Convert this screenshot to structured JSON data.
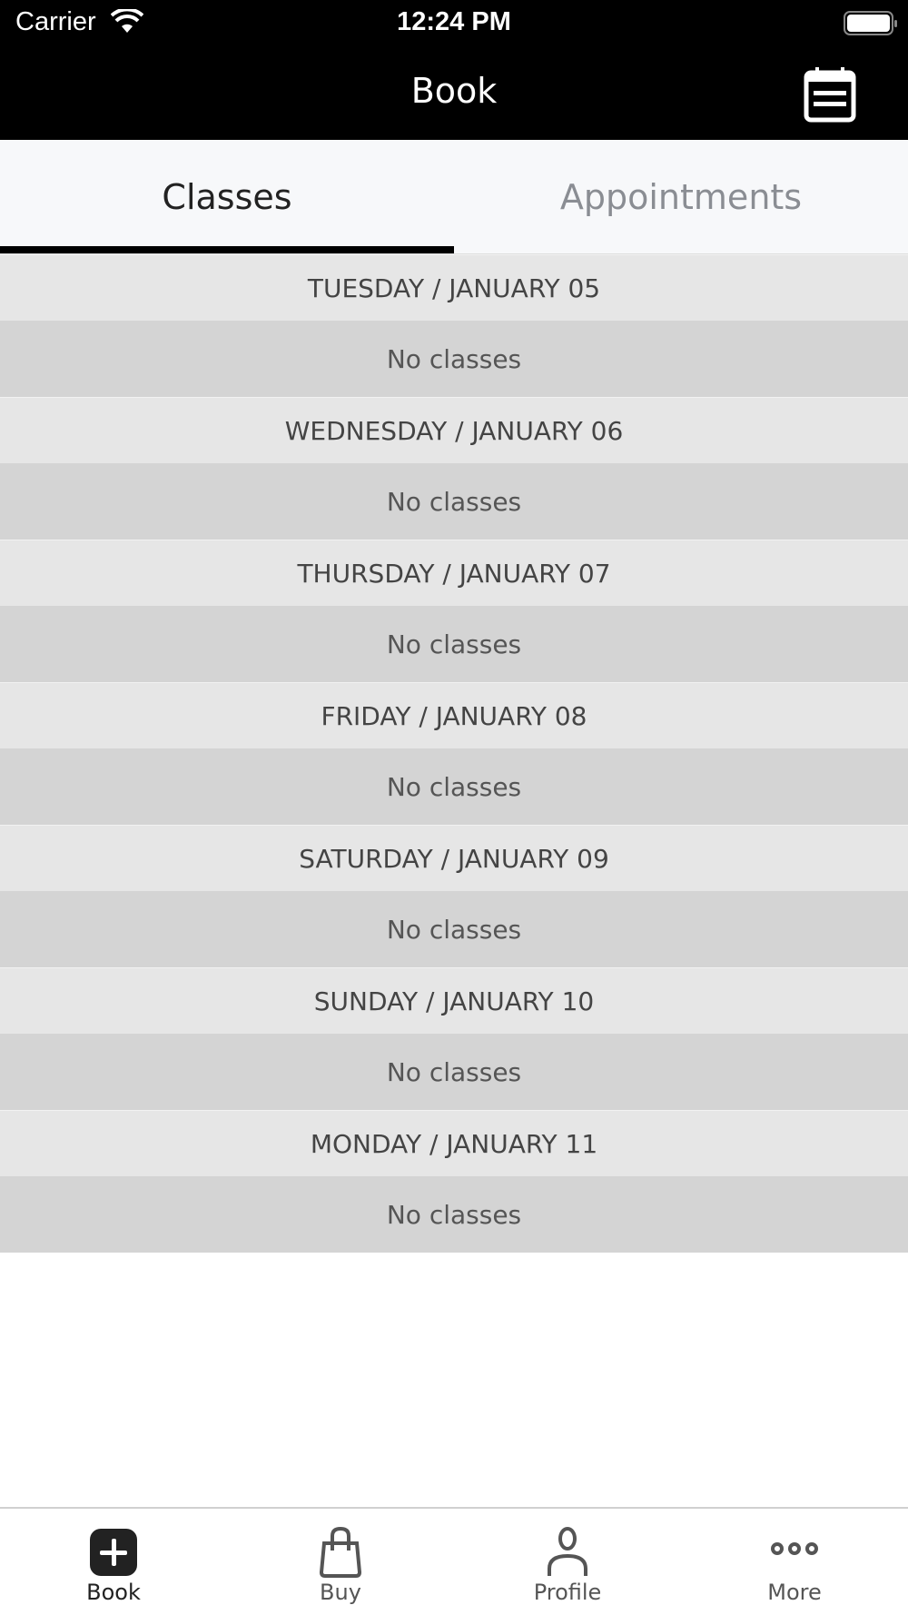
{
  "status_bar": {
    "carrier": "Carrier",
    "time": "12:24 PM"
  },
  "header": {
    "title": "Book",
    "calendar_icon": "calendar-list-icon"
  },
  "tabs": [
    {
      "label": "Classes",
      "active": true
    },
    {
      "label": "Appointments",
      "active": false
    }
  ],
  "days": [
    {
      "date": "TUESDAY / JANUARY 05",
      "message": "No classes"
    },
    {
      "date": "WEDNESDAY / JANUARY 06",
      "message": "No classes"
    },
    {
      "date": "THURSDAY / JANUARY 07",
      "message": "No classes"
    },
    {
      "date": "FRIDAY / JANUARY 08",
      "message": "No classes"
    },
    {
      "date": "SATURDAY / JANUARY 09",
      "message": "No classes"
    },
    {
      "date": "SUNDAY / JANUARY 10",
      "message": "No classes"
    },
    {
      "date": "MONDAY / JANUARY 11",
      "message": "No classes"
    }
  ],
  "tab_bar": [
    {
      "label": "Book",
      "icon": "plus-square-icon",
      "active": true
    },
    {
      "label": "Buy",
      "icon": "shopping-bag-icon"
    },
    {
      "label": "Profile",
      "icon": "person-icon"
    },
    {
      "label": "More",
      "icon": "more-dots-icon"
    }
  ]
}
